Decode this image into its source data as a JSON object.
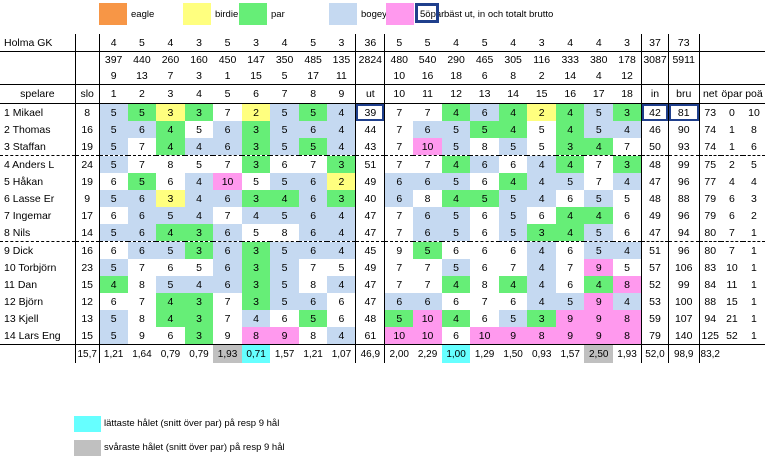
{
  "legend": {
    "items": [
      {
        "key": "eagle",
        "label": "eagle",
        "color": "#f79646"
      },
      {
        "key": "birdie",
        "label": "birdie",
        "color": "#ffff7f"
      },
      {
        "key": "par",
        "label": "par",
        "color": "#66ee77"
      },
      {
        "key": "bogey",
        "label": "bogey",
        "color": "#c5d9f1"
      },
      {
        "key": "5o",
        "label": "5öpar",
        "color": "#ff99ee"
      }
    ],
    "best_label": "bäst ut, in och totalt brutto",
    "best_color": "#1f3f8c"
  },
  "course": {
    "name": "Holma GK",
    "par_out": [
      "4",
      "5",
      "4",
      "3",
      "5",
      "3",
      "4",
      "5",
      "3"
    ],
    "par_out_total": "36",
    "par_in": [
      "5",
      "5",
      "4",
      "5",
      "4",
      "3",
      "4",
      "4",
      "3"
    ],
    "par_in_total": "37",
    "par_total": "73",
    "len_out": [
      "397",
      "440",
      "260",
      "160",
      "450",
      "147",
      "350",
      "485",
      "135"
    ],
    "len_out_total": "2824",
    "len_in": [
      "480",
      "540",
      "290",
      "465",
      "305",
      "116",
      "333",
      "380",
      "178"
    ],
    "len_in_total": "3087",
    "len_total": "5911",
    "hcp_out": [
      "9",
      "13",
      "7",
      "3",
      "1",
      "15",
      "5",
      "17",
      "11"
    ],
    "hcp_in": [
      "10",
      "16",
      "18",
      "6",
      "8",
      "2",
      "14",
      "4",
      "12"
    ]
  },
  "headers": {
    "spelare": "spelare",
    "slo": "slo",
    "holes_out": [
      "1",
      "2",
      "3",
      "4",
      "5",
      "6",
      "7",
      "8",
      "9"
    ],
    "ut": "ut",
    "holes_in": [
      "10",
      "11",
      "12",
      "13",
      "14",
      "15",
      "16",
      "17",
      "18"
    ],
    "in": "in",
    "bru": "bru",
    "net": "net",
    "opar": "öpar",
    "poang": "poä"
  },
  "players": [
    {
      "name": "1 Mikael",
      "slo": "8",
      "out": [
        "5",
        "5",
        "3",
        "3",
        "7",
        "2",
        "5",
        "5",
        "4"
      ],
      "ut": "39",
      "inn": [
        "7",
        "7",
        "4",
        "6",
        "4",
        "2",
        "4",
        "5",
        "3"
      ],
      "in": "42",
      "bru": "81",
      "net": "73",
      "opar": "0",
      "poang": "10",
      "oc": [
        "bogey",
        "par",
        "birdie",
        "par",
        "",
        "birdie",
        "bogey",
        "par",
        "bogey"
      ],
      "ic": [
        "",
        "",
        "par",
        "bogey",
        "par",
        "birdie",
        "par",
        "bogey",
        "par"
      ],
      "bu": true,
      "bi": true,
      "bb": true
    },
    {
      "name": "2 Thomas",
      "slo": "16",
      "out": [
        "5",
        "6",
        "4",
        "5",
        "6",
        "3",
        "5",
        "6",
        "4"
      ],
      "ut": "44",
      "inn": [
        "7",
        "6",
        "5",
        "5",
        "4",
        "5",
        "4",
        "5",
        "4"
      ],
      "in": "46",
      "bru": "90",
      "net": "74",
      "opar": "1",
      "poang": "8",
      "oc": [
        "bogey",
        "bogey",
        "par",
        "",
        "bogey",
        "par",
        "bogey",
        "bogey",
        "bogey"
      ],
      "ic": [
        "",
        "bogey",
        "bogey",
        "par",
        "par",
        "",
        "par",
        "bogey",
        "bogey"
      ]
    },
    {
      "name": "3 Staffan",
      "slo": "19",
      "out": [
        "5",
        "7",
        "4",
        "4",
        "6",
        "3",
        "5",
        "5",
        "4"
      ],
      "ut": "43",
      "inn": [
        "7",
        "10",
        "5",
        "8",
        "5",
        "5",
        "3",
        "4",
        "7"
      ],
      "in": "50",
      "bru": "93",
      "net": "74",
      "opar": "1",
      "poang": "6",
      "oc": [
        "bogey",
        "",
        "par",
        "bogey",
        "bogey",
        "par",
        "bogey",
        "par",
        "bogey"
      ],
      "ic": [
        "",
        "5o",
        "bogey",
        "",
        "bogey",
        "",
        "par",
        "par",
        ""
      ]
    },
    {
      "name": "4 Anders L",
      "slo": "24",
      "out": [
        "5",
        "7",
        "8",
        "5",
        "7",
        "3",
        "6",
        "7",
        "3"
      ],
      "ut": "51",
      "inn": [
        "7",
        "7",
        "4",
        "6",
        "6",
        "4",
        "4",
        "7",
        "3"
      ],
      "in": "48",
      "bru": "99",
      "net": "75",
      "opar": "2",
      "poang": "5",
      "oc": [
        "bogey",
        "",
        "",
        "",
        "",
        "par",
        "",
        "",
        "par"
      ],
      "ic": [
        "",
        "",
        "par",
        "bogey",
        "",
        "bogey",
        "par",
        "",
        "par"
      ]
    },
    {
      "name": "5 Håkan",
      "slo": "19",
      "out": [
        "6",
        "5",
        "6",
        "4",
        "10",
        "5",
        "5",
        "6",
        "2"
      ],
      "ut": "49",
      "inn": [
        "6",
        "6",
        "5",
        "6",
        "4",
        "4",
        "5",
        "7",
        "4"
      ],
      "in": "47",
      "bru": "96",
      "net": "77",
      "opar": "4",
      "poang": "4",
      "oc": [
        "",
        "par",
        "",
        "bogey",
        "5o",
        "",
        "bogey",
        "bogey",
        "birdie"
      ],
      "ic": [
        "bogey",
        "bogey",
        "bogey",
        "",
        "par",
        "bogey",
        "bogey",
        "",
        "bogey"
      ]
    },
    {
      "name": "6 Lasse Er",
      "slo": "9",
      "out": [
        "5",
        "6",
        "3",
        "4",
        "6",
        "3",
        "4",
        "6",
        "3"
      ],
      "ut": "40",
      "inn": [
        "6",
        "8",
        "4",
        "5",
        "5",
        "4",
        "6",
        "5",
        "5"
      ],
      "in": "48",
      "bru": "88",
      "net": "79",
      "opar": "6",
      "poang": "3",
      "oc": [
        "bogey",
        "bogey",
        "birdie",
        "bogey",
        "bogey",
        "par",
        "par",
        "bogey",
        "par"
      ],
      "ic": [
        "bogey",
        "",
        "par",
        "par",
        "bogey",
        "bogey",
        "",
        "bogey",
        ""
      ]
    },
    {
      "name": "7 Ingemar",
      "slo": "17",
      "out": [
        "6",
        "6",
        "5",
        "4",
        "7",
        "4",
        "5",
        "6",
        "4"
      ],
      "ut": "47",
      "inn": [
        "7",
        "6",
        "5",
        "6",
        "5",
        "6",
        "4",
        "4",
        "6"
      ],
      "in": "49",
      "bru": "96",
      "net": "79",
      "opar": "6",
      "poang": "2",
      "oc": [
        "",
        "bogey",
        "bogey",
        "bogey",
        "",
        "bogey",
        "bogey",
        "bogey",
        "bogey"
      ],
      "ic": [
        "",
        "bogey",
        "bogey",
        "",
        "bogey",
        "",
        "par",
        "par",
        ""
      ]
    },
    {
      "name": "8 Nils",
      "slo": "14",
      "out": [
        "5",
        "6",
        "4",
        "3",
        "6",
        "5",
        "8",
        "6",
        "4"
      ],
      "ut": "47",
      "inn": [
        "7",
        "6",
        "5",
        "6",
        "5",
        "3",
        "4",
        "5",
        "6"
      ],
      "in": "47",
      "bru": "94",
      "net": "80",
      "opar": "7",
      "poang": "1",
      "oc": [
        "bogey",
        "bogey",
        "par",
        "par",
        "bogey",
        "",
        "",
        "bogey",
        "bogey"
      ],
      "ic": [
        "",
        "bogey",
        "bogey",
        "",
        "bogey",
        "par",
        "par",
        "bogey",
        ""
      ]
    },
    {
      "name": "9 Dick",
      "slo": "16",
      "out": [
        "6",
        "6",
        "5",
        "3",
        "6",
        "3",
        "5",
        "6",
        "4"
      ],
      "ut": "45",
      "inn": [
        "9",
        "5",
        "6",
        "6",
        "6",
        "4",
        "6",
        "5",
        "4"
      ],
      "in": "51",
      "bru": "96",
      "net": "80",
      "opar": "7",
      "poang": "1",
      "oc": [
        "",
        "bogey",
        "bogey",
        "par",
        "bogey",
        "par",
        "bogey",
        "bogey",
        "bogey"
      ],
      "ic": [
        "",
        "par",
        "",
        "",
        "",
        "bogey",
        "",
        "bogey",
        "bogey"
      ]
    },
    {
      "name": "10 Torbjörn",
      "slo": "23",
      "out": [
        "5",
        "7",
        "6",
        "5",
        "6",
        "3",
        "5",
        "7",
        "5"
      ],
      "ut": "49",
      "inn": [
        "7",
        "7",
        "5",
        "6",
        "7",
        "4",
        "7",
        "9",
        "5"
      ],
      "in": "57",
      "bru": "106",
      "net": "83",
      "opar": "10",
      "poang": "1",
      "oc": [
        "bogey",
        "",
        "",
        "",
        "bogey",
        "par",
        "bogey",
        "",
        ""
      ],
      "ic": [
        "",
        "",
        "bogey",
        "",
        "",
        "bogey",
        "",
        "5o",
        ""
      ]
    },
    {
      "name": "11 Dan",
      "slo": "15",
      "out": [
        "4",
        "8",
        "5",
        "4",
        "6",
        "3",
        "5",
        "8",
        "4"
      ],
      "ut": "47",
      "inn": [
        "7",
        "7",
        "4",
        "8",
        "4",
        "4",
        "6",
        "4",
        "8"
      ],
      "in": "52",
      "bru": "99",
      "net": "84",
      "opar": "11",
      "poang": "1",
      "oc": [
        "par",
        "",
        "bogey",
        "bogey",
        "bogey",
        "par",
        "bogey",
        "",
        "bogey"
      ],
      "ic": [
        "",
        "",
        "par",
        "",
        "par",
        "bogey",
        "",
        "par",
        "5o"
      ]
    },
    {
      "name": "12 Björn",
      "slo": "12",
      "out": [
        "6",
        "7",
        "4",
        "3",
        "7",
        "3",
        "5",
        "6",
        "6"
      ],
      "ut": "47",
      "inn": [
        "6",
        "6",
        "6",
        "7",
        "6",
        "4",
        "5",
        "9",
        "4"
      ],
      "in": "53",
      "bru": "100",
      "net": "88",
      "opar": "15",
      "poang": "1",
      "oc": [
        "",
        "",
        "par",
        "par",
        "",
        "par",
        "bogey",
        "bogey",
        ""
      ],
      "ic": [
        "bogey",
        "bogey",
        "",
        "",
        "",
        "bogey",
        "bogey",
        "5o",
        "bogey"
      ]
    },
    {
      "name": "13 Kjell",
      "slo": "13",
      "out": [
        "5",
        "8",
        "4",
        "3",
        "7",
        "4",
        "6",
        "5",
        "6"
      ],
      "ut": "48",
      "inn": [
        "5",
        "10",
        "4",
        "6",
        "5",
        "3",
        "9",
        "9",
        "8"
      ],
      "in": "59",
      "bru": "107",
      "net": "94",
      "opar": "21",
      "poang": "1",
      "oc": [
        "bogey",
        "",
        "par",
        "par",
        "",
        "bogey",
        "",
        "par",
        ""
      ],
      "ic": [
        "par",
        "5o",
        "par",
        "",
        "bogey",
        "par",
        "5o",
        "5o",
        "5o"
      ]
    },
    {
      "name": "14 Lars Eng",
      "slo": "15",
      "out": [
        "5",
        "9",
        "6",
        "3",
        "9",
        "8",
        "9",
        "8",
        "4"
      ],
      "ut": "61",
      "inn": [
        "10",
        "10",
        "6",
        "10",
        "9",
        "8",
        "9",
        "9",
        "8"
      ],
      "in": "79",
      "bru": "140",
      "net": "125",
      "opar": "52",
      "poang": "1",
      "oc": [
        "bogey",
        "",
        "",
        "par",
        "",
        "5o",
        "5o",
        "",
        "bogey"
      ],
      "ic": [
        "5o",
        "5o",
        "",
        "5o",
        "5o",
        "5o",
        "5o",
        "5o",
        "5o"
      ]
    }
  ],
  "averages": {
    "slo": "15,7",
    "out": [
      "1,21",
      "1,64",
      "0,79",
      "0,79",
      "1,93",
      "0,71",
      "1,57",
      "1,21",
      "1,07"
    ],
    "ut": "46,9",
    "inn": [
      "2,00",
      "2,29",
      "1,00",
      "1,29",
      "1,50",
      "0,93",
      "1,57",
      "2,50",
      "1,93"
    ],
    "in": "52,0",
    "bru": "98,9",
    "net": "83,2",
    "easiest": {
      "out": 5,
      "in": 2
    },
    "hardest": {
      "out": 4,
      "in": 7
    }
  },
  "notes": {
    "easiest_label": "lättaste hålet (snitt över par) på resp 9 hål",
    "easiest_color": "#66ffff",
    "hardest_label": "svåraste hålet (snitt över par)  på resp 9 hål",
    "hardest_color": "#c0c0c0"
  }
}
